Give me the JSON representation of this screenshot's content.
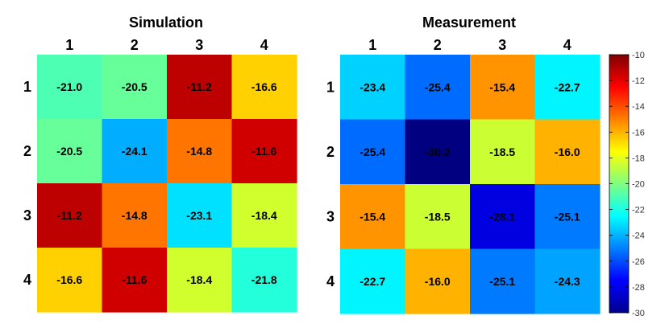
{
  "chart_data": [
    {
      "type": "heatmap",
      "title": "Simulation",
      "x_ticks": [
        "1",
        "2",
        "3",
        "4"
      ],
      "y_ticks": [
        "1",
        "2",
        "3",
        "4"
      ],
      "values": [
        [
          -21.0,
          -20.5,
          -11.2,
          -16.6
        ],
        [
          -20.5,
          -24.1,
          -14.8,
          -11.6
        ],
        [
          -11.2,
          -14.8,
          -23.1,
          -18.4
        ],
        [
          -16.6,
          -11.6,
          -18.4,
          -21.8
        ]
      ],
      "labels": [
        [
          "-21.0",
          "-20.5",
          "-11.2",
          "-16.6"
        ],
        [
          "-20.5",
          "-24.1",
          "-14.8",
          "-11.6"
        ],
        [
          "-11.2",
          "-14.8",
          "-23.1",
          "-18.4"
        ],
        [
          "-16.6",
          "-11.6",
          "-18.4",
          "-21.8"
        ]
      ],
      "x_ticks_position": "top",
      "grid": false
    },
    {
      "type": "heatmap",
      "title": "Measurement",
      "x_ticks": [
        "1",
        "2",
        "3",
        "4"
      ],
      "y_ticks": [
        "1",
        "2",
        "3",
        "4"
      ],
      "values": [
        [
          -23.4,
          -25.4,
          -15.4,
          -22.7
        ],
        [
          -25.4,
          -30.2,
          -18.5,
          -16.0
        ],
        [
          -15.4,
          -18.5,
          -28.1,
          -25.1
        ],
        [
          -22.7,
          -16.0,
          -25.1,
          -24.3
        ]
      ],
      "labels": [
        [
          "-23.4",
          "-25.4",
          "-15.4",
          "-22.7"
        ],
        [
          "-25.4",
          "-30.2",
          "-18.5",
          "-16.0"
        ],
        [
          "-15.4",
          "-18.5",
          "-28.1",
          "-25.1"
        ],
        [
          "-22.7",
          "-16.0",
          "-25.1",
          "-24.3"
        ]
      ],
      "x_ticks_position": "top",
      "grid": false
    }
  ],
  "colorbar": {
    "colormap": "jet",
    "range": [
      -30,
      -10
    ],
    "ticks": [
      -10,
      -12,
      -14,
      -16,
      -18,
      -20,
      -22,
      -24,
      -26,
      -28,
      -30
    ],
    "tick_labels": [
      "-10",
      "-12",
      "-14",
      "-16",
      "-18",
      "-20",
      "-22",
      "-24",
      "-26",
      "-28",
      "-30"
    ],
    "placement": "right"
  }
}
